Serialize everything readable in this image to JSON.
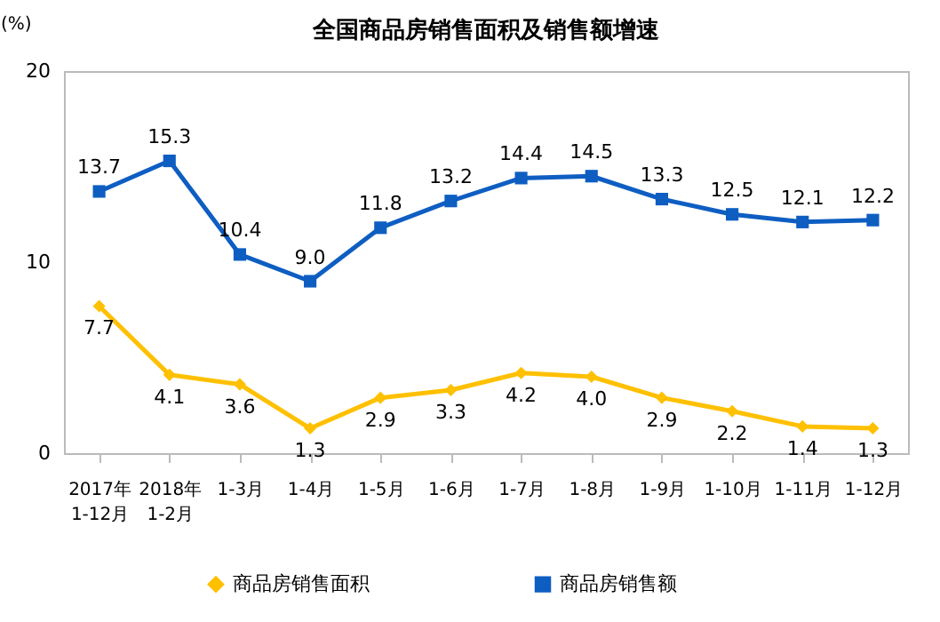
{
  "chart_data": {
    "type": "line",
    "title": "全国商品房销售面积及销售额增速",
    "ylabel": "(%)",
    "categories": [
      "2017年\n1-12月",
      "2018年\n1-2月",
      "1-3月",
      "1-4月",
      "1-5月",
      "1-6月",
      "1-7月",
      "1-8月",
      "1-9月",
      "1-10月",
      "1-11月",
      "1-12月"
    ],
    "series": [
      {
        "name": "商品房销售面积",
        "color": "#ffc000",
        "marker": "diamond",
        "values": [
          7.7,
          4.1,
          3.6,
          1.3,
          2.9,
          3.3,
          4.2,
          4.0,
          2.9,
          2.2,
          1.4,
          1.3
        ],
        "value_labels": [
          "7.7",
          "4.1",
          "3.6",
          "1.3",
          "2.9",
          "3.3",
          "4.2",
          "4.0",
          "2.9",
          "2.2",
          "1.4",
          "1.3"
        ]
      },
      {
        "name": "商品房销售额",
        "color": "#0e5ec2",
        "marker": "square",
        "values": [
          13.7,
          15.3,
          10.4,
          9.0,
          11.8,
          13.2,
          14.4,
          14.5,
          13.3,
          12.5,
          12.1,
          12.2
        ],
        "value_labels": [
          "13.7",
          "15.3",
          "10.4",
          "9.0",
          "11.8",
          "13.2",
          "14.4",
          "14.5",
          "13.3",
          "12.5",
          "12.1",
          "12.2"
        ]
      }
    ],
    "ylim": [
      0,
      20
    ],
    "yticks": [
      0,
      10,
      20
    ],
    "legend": "bottom"
  }
}
